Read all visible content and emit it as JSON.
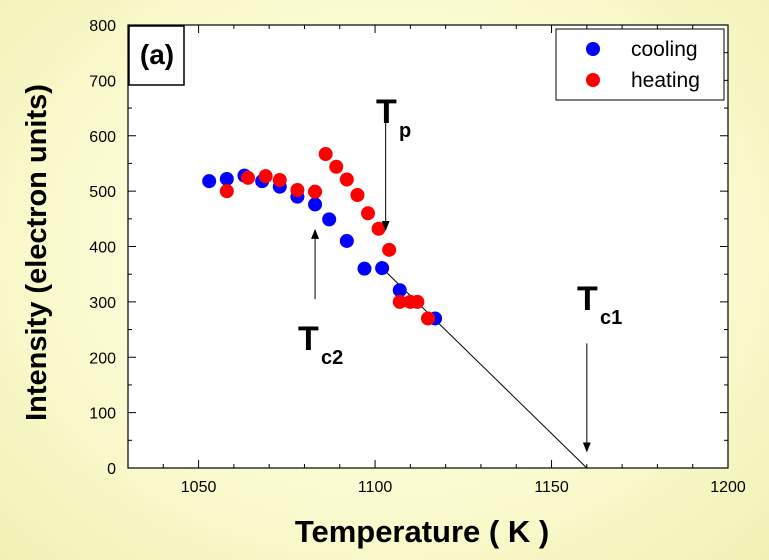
{
  "chart_data": {
    "type": "scatter",
    "panel_label": "(a)",
    "xlabel": "Temperature  ( K )",
    "ylabel": "Intensity (electron units)",
    "xlim": [
      1030,
      1200
    ],
    "ylim": [
      0,
      800
    ],
    "x_ticks": [
      1050,
      1100,
      1150,
      1200
    ],
    "y_ticks": [
      0,
      100,
      200,
      300,
      400,
      500,
      600,
      700,
      800
    ],
    "grid": false,
    "legend_position": "top-right",
    "series": [
      {
        "name": "cooling",
        "color": "#0000ff",
        "points": [
          [
            1053,
            518
          ],
          [
            1058,
            522
          ],
          [
            1063,
            528
          ],
          [
            1068,
            518
          ],
          [
            1073,
            508
          ],
          [
            1078,
            490
          ],
          [
            1083,
            476
          ],
          [
            1087,
            449
          ],
          [
            1092,
            410
          ],
          [
            1097,
            360
          ],
          [
            1102,
            361
          ],
          [
            1107,
            321
          ],
          [
            1117,
            270
          ]
        ]
      },
      {
        "name": "heating",
        "color": "#ff0000",
        "points": [
          [
            1058,
            500
          ],
          [
            1064,
            524
          ],
          [
            1069,
            527
          ],
          [
            1073,
            520
          ],
          [
            1078,
            502
          ],
          [
            1083,
            499
          ],
          [
            1086,
            567
          ],
          [
            1089,
            544
          ],
          [
            1092,
            521
          ],
          [
            1095,
            493
          ],
          [
            1098,
            460
          ],
          [
            1101,
            432
          ],
          [
            1104,
            394
          ],
          [
            1107,
            300
          ],
          [
            1110,
            300
          ],
          [
            1112,
            300
          ],
          [
            1115,
            270
          ]
        ]
      }
    ],
    "fit_line": {
      "from": [
        1102,
        361
      ],
      "to": [
        1160,
        0
      ]
    },
    "annotations": [
      {
        "main": "T",
        "sub": "p",
        "arrow_from": [
          1103,
          625
        ],
        "arrow_to": [
          1103,
          430
        ]
      },
      {
        "main": "T",
        "sub": "c2",
        "arrow_from": [
          1083,
          305
        ],
        "arrow_to": [
          1083,
          430
        ]
      },
      {
        "main": "T",
        "sub": "c1",
        "arrow_from": [
          1160,
          225
        ],
        "arrow_to": [
          1160,
          30
        ]
      }
    ]
  }
}
